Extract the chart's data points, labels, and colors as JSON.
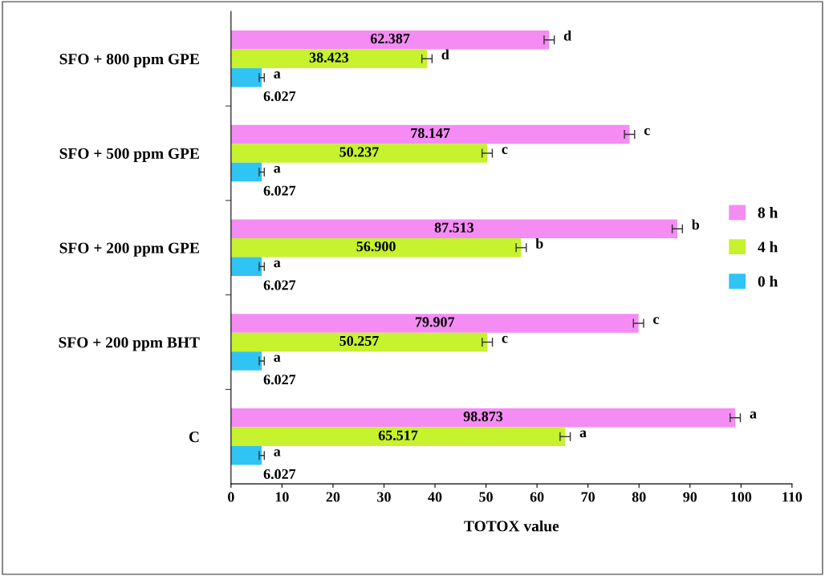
{
  "chart_data": {
    "type": "bar",
    "orientation": "horizontal",
    "xlabel": "TOTOX value",
    "categories": [
      "SFO + 800 ppm GPE",
      "SFO + 500 ppm GPE",
      "SFO + 200 ppm GPE",
      "SFO + 200 ppm BHT",
      "C"
    ],
    "series": [
      {
        "name": "8 h",
        "color": "#f48cf4",
        "values": [
          62.387,
          78.147,
          87.513,
          79.907,
          98.873
        ],
        "value_labels": [
          "62.387",
          "78.147",
          "87.513",
          "79.907",
          "98.873"
        ],
        "errors": [
          1.0,
          1.0,
          1.0,
          1.0,
          1.0
        ]
      },
      {
        "name": "4 h",
        "color": "#c6f22e",
        "values": [
          38.423,
          50.237,
          56.9,
          50.257,
          65.517
        ],
        "value_labels": [
          "38.423",
          "50.237",
          "56.900",
          "50.257",
          "65.517"
        ],
        "errors": [
          1.0,
          1.0,
          1.0,
          1.0,
          1.0
        ]
      },
      {
        "name": "0 h",
        "color": "#30c4f4",
        "values": [
          6.027,
          6.027,
          6.027,
          6.027,
          6.027
        ],
        "value_labels": [
          "6.027",
          "6.027",
          "6.027",
          "6.027",
          "6.027"
        ],
        "errors": [
          0.5,
          0.5,
          0.5,
          0.5,
          0.5
        ]
      }
    ],
    "xlim": [
      0,
      110
    ],
    "xticks": [
      0,
      10,
      20,
      30,
      40,
      50,
      60,
      70,
      80,
      90,
      100,
      110
    ],
    "grid": false,
    "legend": "right",
    "annotations": [
      "d",
      "d",
      "a",
      "c",
      "c",
      "a",
      "b",
      "b",
      "a",
      "c",
      "c",
      "a",
      "a",
      "a",
      "a"
    ]
  }
}
